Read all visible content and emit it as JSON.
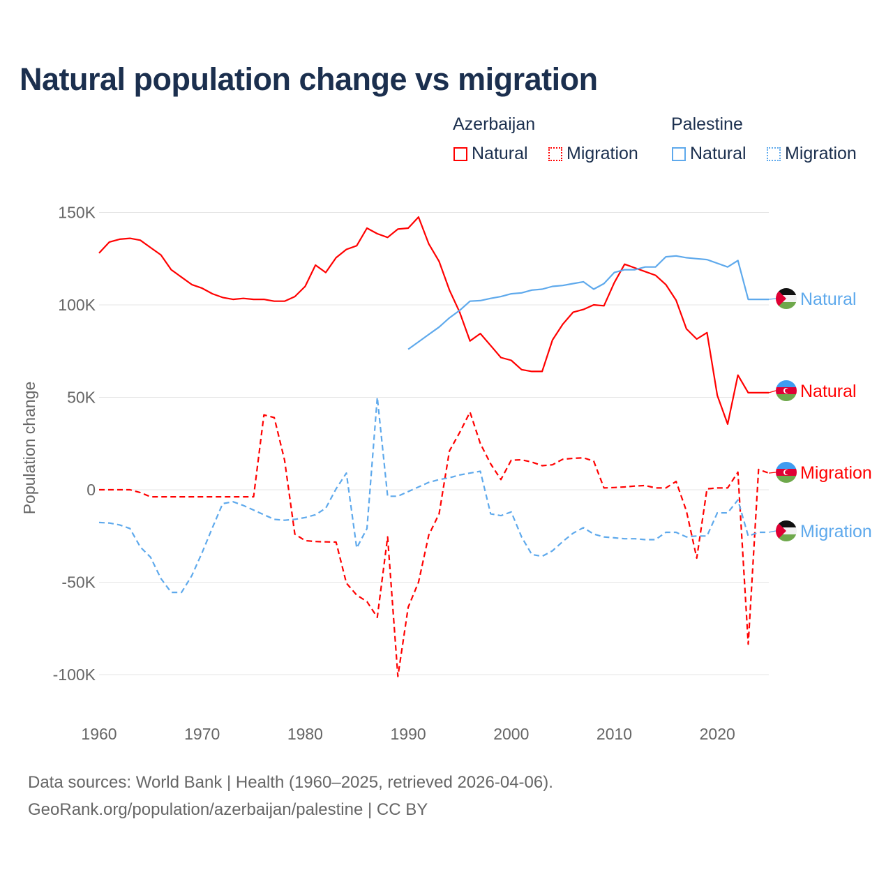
{
  "title": "Natural population change vs migration",
  "legend": {
    "groups": [
      {
        "name": "Azerbaijan",
        "color": "#ff0000",
        "items": [
          "Natural",
          "Migration"
        ]
      },
      {
        "name": "Palestine",
        "color": "#5ea9ec",
        "items": [
          "Natural",
          "Migration"
        ]
      }
    ]
  },
  "footer": {
    "line1": "Data sources: World Bank | Health (1960–2025, retrieved 2026-04-06).",
    "line2": "GeoRank.org/population/azerbaijan/palestine | CC BY"
  },
  "chart_data": {
    "type": "line",
    "title": "Natural population change vs migration",
    "xlabel": "",
    "ylabel": "Population change",
    "xlim": [
      1960,
      2025
    ],
    "ylim": [
      -100000,
      150000
    ],
    "x_ticks": [
      1960,
      1970,
      1980,
      1990,
      2000,
      2010,
      2020
    ],
    "x_tick_labels": [
      "1960",
      "1970",
      "1980",
      "1990",
      "2000",
      "2010",
      "2020"
    ],
    "y_ticks": [
      150000,
      100000,
      50000,
      0,
      -50000,
      -100000
    ],
    "y_tick_labels": [
      "150K",
      "100K",
      "50K",
      "0",
      "-50K",
      "-100K"
    ],
    "grid": true,
    "legend_position": "top-right",
    "series": [
      {
        "name": "Azerbaijan Natural",
        "end_label": "Natural",
        "country": "azerbaijan",
        "color": "#ff0000",
        "dash": false,
        "start": 1960,
        "values_k": [
          128,
          134,
          135.5,
          136,
          135,
          131,
          127,
          119,
          115,
          111,
          109,
          106,
          104,
          103,
          103.5,
          103,
          103,
          102,
          102,
          104.5,
          110,
          121.5,
          117.5,
          125.5,
          130,
          132,
          141.5,
          138.5,
          136.5,
          141,
          141.5,
          147.5,
          133,
          123.5,
          108,
          96,
          80.5,
          84.5,
          78,
          71.5,
          70,
          65,
          64,
          64,
          81,
          89.5,
          96,
          97.5,
          100,
          99.5,
          112,
          122,
          120,
          118,
          116,
          111,
          102.5,
          87,
          81.5,
          85,
          51,
          35.5,
          62,
          52.5,
          52.5,
          52.5
        ]
      },
      {
        "name": "Azerbaijan Migration",
        "end_label": "Migration",
        "country": "azerbaijan",
        "color": "#ff0000",
        "dash": true,
        "start": 1960,
        "values_k": [
          0,
          0,
          0,
          0,
          -1.5,
          -3.8,
          -3.8,
          -3.8,
          -3.8,
          -3.8,
          -3.8,
          -3.8,
          -3.8,
          -3.8,
          -3.8,
          -3.8,
          40.5,
          39,
          16,
          -24,
          -27.5,
          -28,
          -28.2,
          -28.3,
          -50.5,
          -57,
          -60.5,
          -69,
          -25.5,
          -101,
          -63.5,
          -50,
          -24.5,
          -13,
          21,
          31,
          42,
          25,
          14,
          5.5,
          16,
          16.2,
          15,
          13,
          13.5,
          16.5,
          17,
          17.3,
          15.5,
          1,
          1.2,
          1.5,
          2,
          2.3,
          1,
          1,
          4.5,
          -11.5,
          -37,
          0.5,
          1,
          1,
          9.5,
          -83.5,
          11,
          9
        ]
      },
      {
        "name": "Palestine Natural",
        "end_label": "Natural",
        "country": "palestine",
        "color": "#5ea9ec",
        "dash": false,
        "start": 1990,
        "values_k": [
          76,
          80,
          84,
          88,
          93,
          97,
          102,
          102.3,
          103.5,
          104.5,
          106,
          106.5,
          108,
          108.5,
          110,
          110.5,
          111.5,
          112.5,
          108.5,
          111.5,
          117.5,
          119,
          119,
          120.5,
          120.5,
          126,
          126.5,
          125.5,
          125,
          124.5,
          122.5,
          120.5,
          124,
          103,
          103,
          103
        ]
      },
      {
        "name": "Palestine Migration",
        "end_label": "Migration",
        "country": "palestine",
        "color": "#5ea9ec",
        "dash": true,
        "start": 1960,
        "values_k": [
          -17.7,
          -18,
          -19,
          -21,
          -31,
          -36.5,
          -48,
          -55.5,
          -55.5,
          -46.5,
          -34,
          -20.5,
          -7.5,
          -6.5,
          -8.5,
          -11,
          -13.5,
          -16,
          -16.5,
          -16,
          -15,
          -13.5,
          -10,
          0.5,
          9,
          -31.5,
          -21,
          50,
          -3.5,
          -3.5,
          -1,
          1.5,
          4,
          5.5,
          6.5,
          8,
          9,
          10,
          -13,
          -14,
          -12,
          -25.5,
          -35,
          -36,
          -33,
          -28,
          -23.5,
          -20.5,
          -24,
          -25.5,
          -26,
          -26.5,
          -26.5,
          -27,
          -27,
          -23,
          -23,
          -25.5,
          -25,
          -25,
          -12.5,
          -12.5,
          -5.5,
          -25,
          -23,
          -23
        ]
      }
    ]
  }
}
